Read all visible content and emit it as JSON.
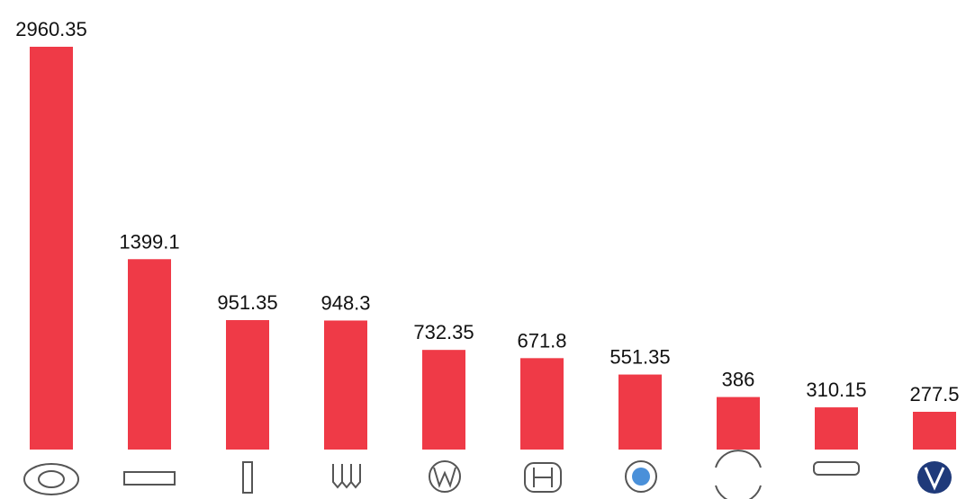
{
  "chart_data": {
    "type": "bar",
    "categories": [
      null,
      null,
      null,
      null,
      null,
      null,
      null,
      null,
      null,
      null
    ],
    "values": [
      2960.35,
      1399.1,
      951.35,
      948.3,
      732.35,
      671.8,
      551.35,
      386,
      310.15,
      277.5
    ],
    "color": "#ef3a47"
  }
}
